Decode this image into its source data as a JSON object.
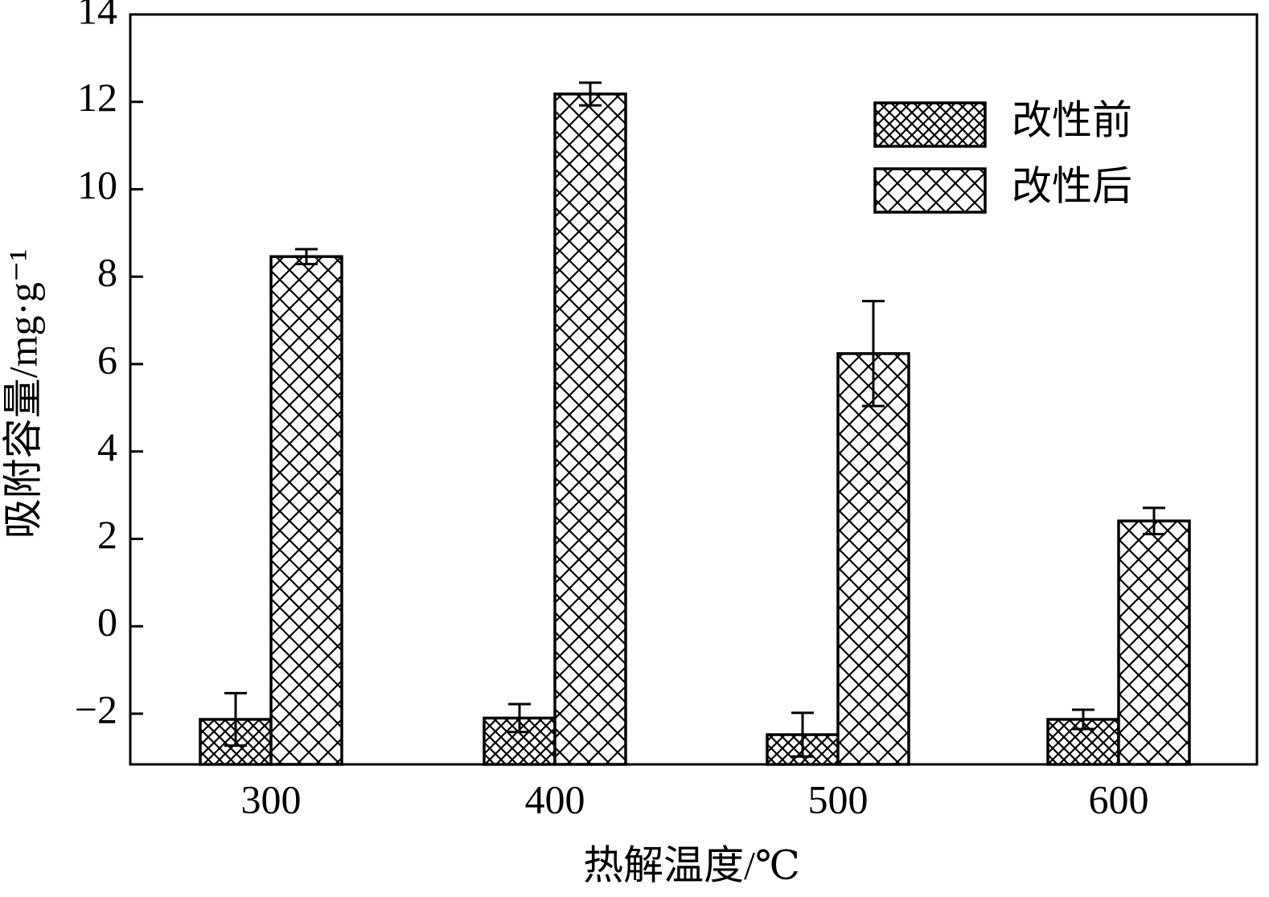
{
  "chart_data": {
    "type": "bar",
    "categories": [
      "300",
      "400",
      "500",
      "600"
    ],
    "x_label": "热解温度/℃",
    "y_label": "吸附容量/mg·g⁻¹",
    "series": [
      {
        "name": "改性前",
        "color": "#000000",
        "values": [
          -2.13,
          -2.1,
          -2.48,
          -2.13
        ],
        "errors": [
          0.6,
          0.32,
          0.5,
          0.22
        ]
      },
      {
        "name": "改性后",
        "color": "#000000",
        "values": [
          8.46,
          12.18,
          6.24,
          2.41
        ],
        "errors": [
          0.17,
          0.26,
          1.2,
          0.3
        ]
      }
    ],
    "ylim": [
      -3.16,
      14
    ],
    "yticks": [
      {
        "value": -2,
        "label": "−2"
      },
      0,
      2,
      4,
      6,
      8,
      10,
      12,
      14
    ],
    "legend": "upper right"
  }
}
